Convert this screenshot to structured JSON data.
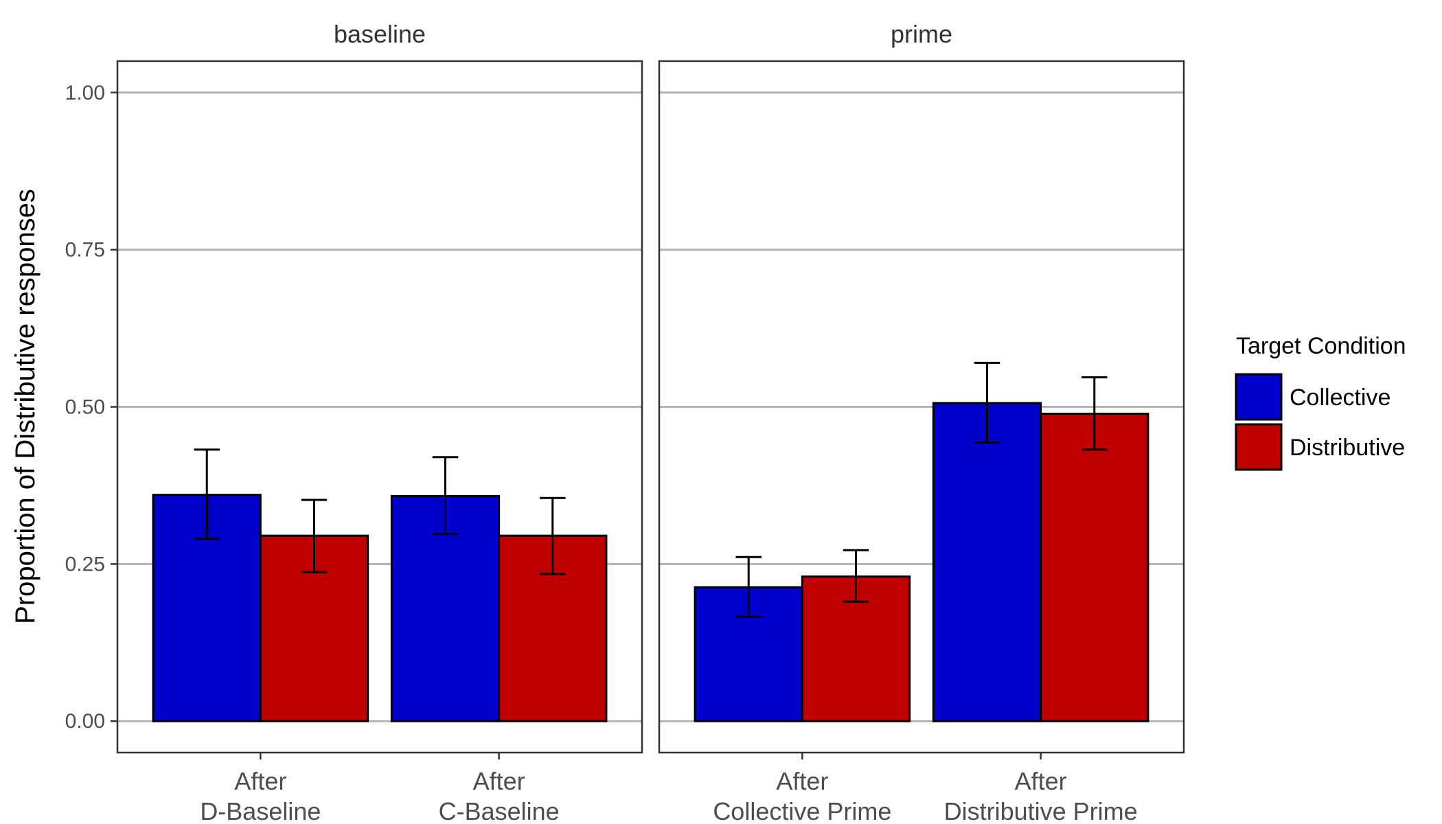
{
  "chart_data": {
    "type": "bar",
    "title": "",
    "ylabel": "Proportion of Distributive responses",
    "xlabel": "",
    "ylim": [
      -0.05,
      1.05
    ],
    "yticks": [
      "0.00",
      "0.25",
      "0.50",
      "0.75",
      "1.00"
    ],
    "grid": true,
    "legend": {
      "title": "Target Condition",
      "placement": "right",
      "entries": [
        "Collective",
        "Distributive"
      ]
    },
    "colors": {
      "Collective": "#0000CD",
      "Distributive": "#C00000"
    },
    "facets": [
      {
        "title": "baseline",
        "categories": [
          [
            "After",
            "D-Baseline"
          ],
          [
            "After",
            "C-Baseline"
          ]
        ],
        "series": [
          {
            "name": "Collective",
            "values": [
              0.36,
              0.358
            ],
            "err_low": [
              0.29,
              0.298
            ],
            "err_high": [
              0.432,
              0.42
            ]
          },
          {
            "name": "Distributive",
            "values": [
              0.295,
              0.295
            ],
            "err_low": [
              0.237,
              0.234
            ],
            "err_high": [
              0.352,
              0.355
            ]
          }
        ]
      },
      {
        "title": "prime",
        "categories": [
          [
            "After",
            "Collective Prime"
          ],
          [
            "After",
            "Distributive Prime"
          ]
        ],
        "series": [
          {
            "name": "Collective",
            "values": [
              0.213,
              0.506
            ],
            "err_low": [
              0.166,
              0.443
            ],
            "err_high": [
              0.261,
              0.57
            ]
          },
          {
            "name": "Distributive",
            "values": [
              0.23,
              0.489
            ],
            "err_low": [
              0.19,
              0.432
            ],
            "err_high": [
              0.272,
              0.547
            ]
          }
        ]
      }
    ]
  }
}
